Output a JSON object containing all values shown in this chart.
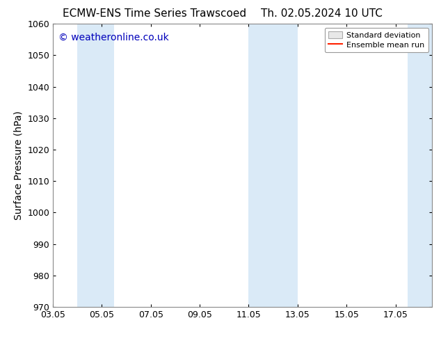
{
  "title_left": "ECMW-ENS Time Series Trawscoed",
  "title_right": "Th. 02.05.2024 10 UTC",
  "ylabel": "Surface Pressure (hPa)",
  "watermark": "© weatheronline.co.uk",
  "watermark_color": "#0000bb",
  "ylim": [
    970,
    1060
  ],
  "yticks": [
    970,
    980,
    990,
    1000,
    1010,
    1020,
    1030,
    1040,
    1050,
    1060
  ],
  "xtick_labels": [
    "03.05",
    "05.05",
    "07.05",
    "09.05",
    "11.05",
    "13.05",
    "15.05",
    "17.05"
  ],
  "xtick_positions": [
    3,
    5,
    7,
    9,
    11,
    13,
    15,
    17
  ],
  "xlim": [
    3,
    18.5
  ],
  "shaded_bands": [
    {
      "x_start": 4.0,
      "x_end": 5.5
    },
    {
      "x_start": 11.0,
      "x_end": 13.0
    },
    {
      "x_start": 17.5,
      "x_end": 18.6
    }
  ],
  "shade_color": "#daeaf7",
  "background_color": "#ffffff",
  "legend_std_color": "#cccccc",
  "legend_mean_color": "#ff2200",
  "title_fontsize": 11,
  "label_fontsize": 10,
  "tick_fontsize": 9,
  "watermark_fontsize": 10,
  "figsize": [
    6.34,
    4.9
  ],
  "dpi": 100
}
